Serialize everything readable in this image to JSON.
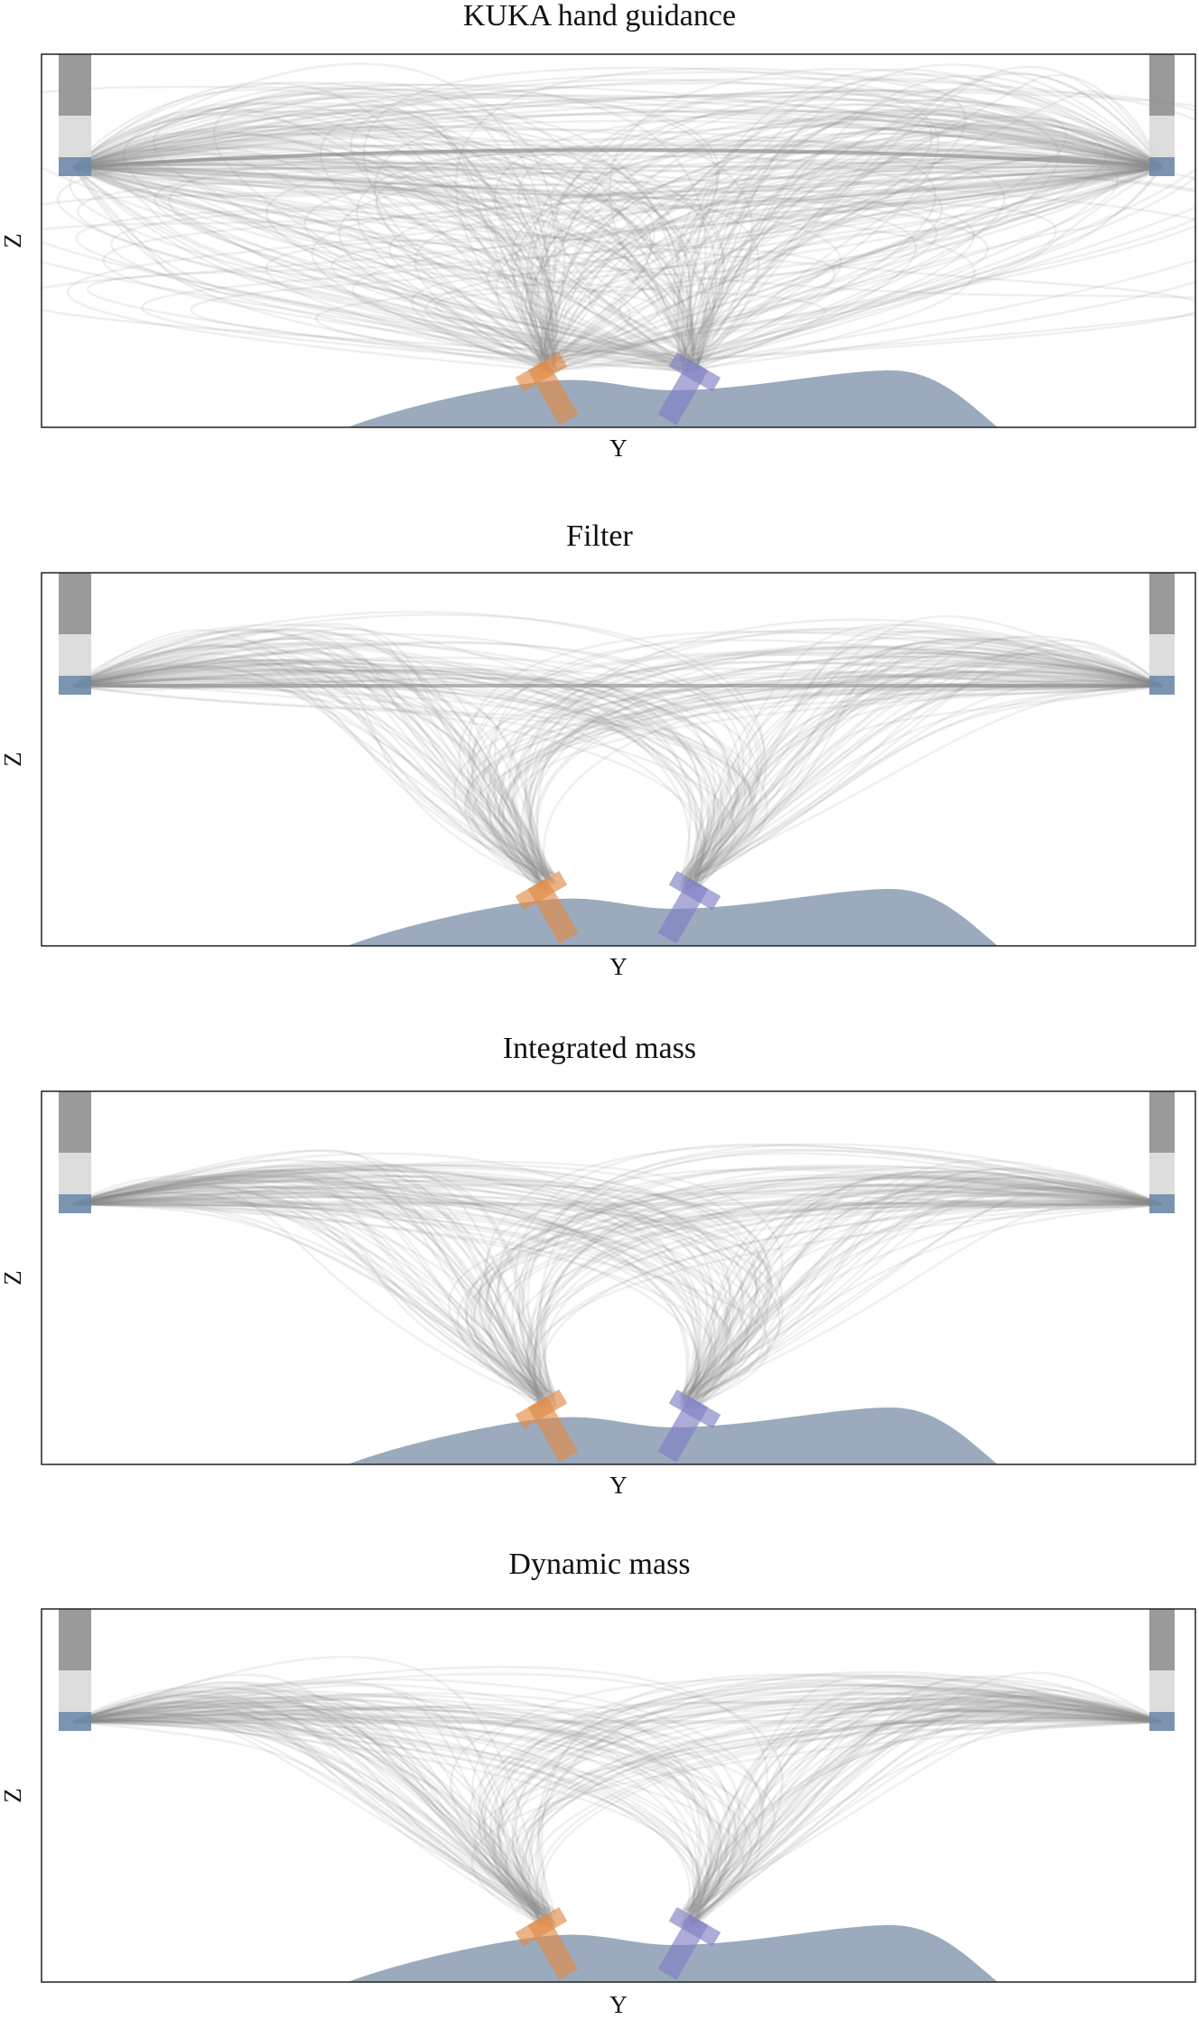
{
  "panels": [
    {
      "title": "KUKA hand guidance",
      "x_label": "Y",
      "y_label": "Z"
    },
    {
      "title": "Filter",
      "x_label": "Y",
      "y_label": "Z"
    },
    {
      "title": "Integrated mass",
      "x_label": "Y",
      "y_label": "Z"
    },
    {
      "title": "Dynamic mass",
      "x_label": "Y",
      "y_label": "Z"
    }
  ]
}
